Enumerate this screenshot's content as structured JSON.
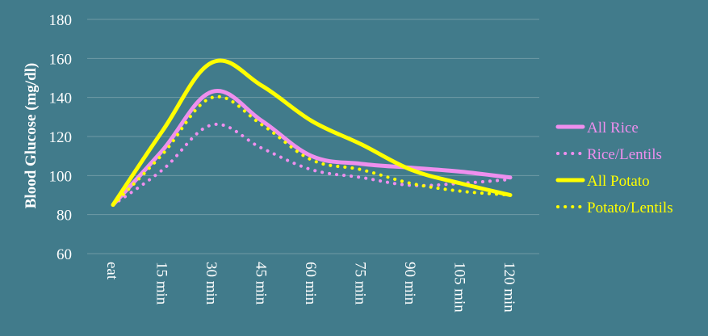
{
  "chart_data": {
    "type": "line",
    "title": "",
    "xlabel": "",
    "ylabel": "Blood Glucose  (mg/dl)",
    "categories": [
      "eat",
      "15 min",
      "30 min",
      "45 min",
      "60 min",
      "75 min",
      "90 min",
      "105 min",
      "120 min"
    ],
    "ylim": [
      60,
      180
    ],
    "yticks": [
      "60",
      "80",
      "100",
      "120",
      "140",
      "160",
      "180"
    ],
    "grid": true,
    "legend_position": "right",
    "series": [
      {
        "name": "All Rice",
        "values": [
          85,
          113,
          143,
          128,
          110,
          106,
          104,
          102,
          99
        ],
        "color": "#ee8fee",
        "dashed": false
      },
      {
        "name": "Rice/Lentils",
        "values": [
          85,
          103,
          126,
          114,
          103,
          99,
          95,
          96,
          98
        ],
        "color": "#ee8fee",
        "dashed": true
      },
      {
        "name": "All Potato",
        "values": [
          85,
          123,
          158,
          146,
          128,
          116,
          103,
          96,
          90
        ],
        "color": "#ffff00",
        "dashed": false
      },
      {
        "name": "Potato/Lentils",
        "values": [
          85,
          111,
          140,
          126,
          108,
          103,
          96,
          92,
          90
        ],
        "color": "#ffff00",
        "dashed": true
      }
    ]
  }
}
